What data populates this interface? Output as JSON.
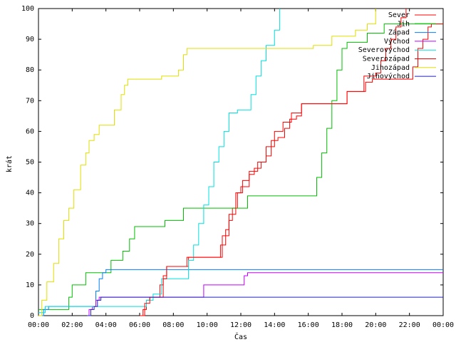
{
  "chart_data": {
    "type": "line",
    "xlabel": "Čas",
    "ylabel": "krát",
    "ylim": [
      0,
      100
    ],
    "xlim": [
      0,
      24
    ],
    "y_ticks": [
      0,
      10,
      20,
      30,
      40,
      50,
      60,
      70,
      80,
      90,
      100
    ],
    "x_ticks": [
      "00:00",
      "02:00",
      "04:00",
      "06:00",
      "08:00",
      "10:00",
      "12:00",
      "14:00",
      "16:00",
      "18:00",
      "20:00",
      "22:00",
      "00:00"
    ],
    "grid": false,
    "legend_position": "top-right",
    "series": [
      {
        "name": "Sever",
        "color": "#ff0000",
        "points": [
          [
            6.1,
            0
          ],
          [
            6.2,
            2
          ],
          [
            6.4,
            5
          ],
          [
            6.6,
            6
          ],
          [
            7,
            6
          ],
          [
            7.2,
            10
          ],
          [
            7.4,
            13
          ],
          [
            7.6,
            16
          ],
          [
            8.8,
            16
          ],
          [
            8.9,
            19
          ],
          [
            10.5,
            19
          ],
          [
            10.8,
            23
          ],
          [
            11.1,
            28
          ],
          [
            11.3,
            31
          ],
          [
            11.5,
            35
          ],
          [
            11.8,
            40
          ],
          [
            12,
            42
          ],
          [
            12.3,
            42
          ],
          [
            12.5,
            46
          ],
          [
            12.8,
            48
          ],
          [
            13.2,
            50
          ],
          [
            13.5,
            52
          ],
          [
            13.8,
            57
          ],
          [
            14.2,
            58
          ],
          [
            14.6,
            61
          ],
          [
            14.9,
            64
          ],
          [
            15.3,
            65
          ],
          [
            15.6,
            69
          ],
          [
            18.1,
            69
          ],
          [
            18.3,
            73
          ],
          [
            19.1,
            73
          ],
          [
            19.3,
            78
          ],
          [
            20,
            79
          ],
          [
            20.3,
            83
          ],
          [
            20.6,
            87
          ],
          [
            20.9,
            90
          ],
          [
            21.2,
            94
          ],
          [
            21.5,
            97
          ],
          [
            21.8,
            100
          ]
        ]
      },
      {
        "name": "Jih",
        "color": "#00c000",
        "points": [
          [
            0,
            2
          ],
          [
            1.5,
            2
          ],
          [
            1.8,
            6
          ],
          [
            2,
            10
          ],
          [
            2.6,
            10
          ],
          [
            2.8,
            14
          ],
          [
            4,
            14
          ],
          [
            4.3,
            18
          ],
          [
            4.8,
            18
          ],
          [
            5,
            21
          ],
          [
            5.4,
            25
          ],
          [
            5.7,
            29
          ],
          [
            7.3,
            29
          ],
          [
            7.5,
            31
          ],
          [
            8.3,
            31
          ],
          [
            8.6,
            35
          ],
          [
            12.1,
            35
          ],
          [
            12.4,
            39
          ],
          [
            16.3,
            39
          ],
          [
            16.5,
            45
          ],
          [
            16.8,
            53
          ],
          [
            17.1,
            61
          ],
          [
            17.4,
            70
          ],
          [
            17.7,
            80
          ],
          [
            18,
            87
          ],
          [
            18.3,
            89
          ],
          [
            19.1,
            89
          ],
          [
            19.5,
            92
          ],
          [
            20.5,
            95
          ],
          [
            24,
            95
          ]
        ]
      },
      {
        "name": "Západ",
        "color": "#0080ff",
        "points": [
          [
            0,
            0
          ],
          [
            0.3,
            2
          ],
          [
            0.6,
            3
          ],
          [
            3.2,
            3
          ],
          [
            3.4,
            8
          ],
          [
            3.6,
            12
          ],
          [
            3.8,
            14
          ],
          [
            4,
            15
          ],
          [
            24,
            15
          ]
        ]
      },
      {
        "name": "Východ",
        "color": "#c000ff",
        "points": [
          [
            2.9,
            0
          ],
          [
            3,
            2
          ],
          [
            3.2,
            3
          ],
          [
            3.4,
            5
          ],
          [
            3.6,
            6
          ],
          [
            9.6,
            6
          ],
          [
            9.8,
            10
          ],
          [
            12,
            10
          ],
          [
            12.2,
            13
          ],
          [
            12.4,
            14
          ],
          [
            24,
            14
          ]
        ]
      },
      {
        "name": "Severovýchod",
        "color": "#00e0e0",
        "points": [
          [
            0,
            1
          ],
          [
            0.4,
            3
          ],
          [
            6.2,
            3
          ],
          [
            6.4,
            5
          ],
          [
            6.8,
            7
          ],
          [
            7.1,
            7
          ],
          [
            7.3,
            12
          ],
          [
            8.7,
            12
          ],
          [
            8.9,
            18
          ],
          [
            9.2,
            23
          ],
          [
            9.5,
            30
          ],
          [
            9.8,
            36
          ],
          [
            10.1,
            42
          ],
          [
            10.4,
            50
          ],
          [
            10.7,
            55
          ],
          [
            11,
            60
          ],
          [
            11.3,
            66
          ],
          [
            11.8,
            67
          ],
          [
            12.3,
            67
          ],
          [
            12.6,
            72
          ],
          [
            12.9,
            78
          ],
          [
            13.2,
            83
          ],
          [
            13.5,
            88
          ],
          [
            13.8,
            88
          ],
          [
            14,
            93
          ],
          [
            14.3,
            100
          ]
        ]
      },
      {
        "name": "Severozápad",
        "color": "#ff0000",
        "points": [
          [
            6,
            0
          ],
          [
            6.3,
            4
          ],
          [
            6.6,
            6
          ],
          [
            7.2,
            6
          ],
          [
            7.4,
            12
          ],
          [
            7.6,
            16
          ],
          [
            8.6,
            16
          ],
          [
            8.8,
            19
          ],
          [
            10.5,
            19
          ],
          [
            10.9,
            26
          ],
          [
            11.3,
            33
          ],
          [
            11.7,
            40
          ],
          [
            12.1,
            44
          ],
          [
            12.5,
            47
          ],
          [
            13,
            50
          ],
          [
            13.5,
            55
          ],
          [
            14,
            60
          ],
          [
            14.5,
            63
          ],
          [
            15,
            66
          ],
          [
            15.6,
            69
          ],
          [
            18.1,
            69
          ],
          [
            18.3,
            73
          ],
          [
            19.1,
            73
          ],
          [
            19.4,
            76
          ],
          [
            19.8,
            77
          ],
          [
            22,
            77
          ],
          [
            22.2,
            81
          ],
          [
            22.5,
            87
          ],
          [
            22.8,
            90
          ],
          [
            23.1,
            94
          ],
          [
            23.3,
            95
          ],
          [
            24,
            95
          ]
        ]
      },
      {
        "name": "Jihozápad",
        "color": "#e0e000",
        "points": [
          [
            0,
            0
          ],
          [
            0.2,
            5
          ],
          [
            0.5,
            11
          ],
          [
            0.9,
            17
          ],
          [
            1.2,
            25
          ],
          [
            1.5,
            31
          ],
          [
            1.8,
            35
          ],
          [
            2.1,
            41
          ],
          [
            2.5,
            49
          ],
          [
            2.8,
            53
          ],
          [
            3,
            57
          ],
          [
            3.3,
            59
          ],
          [
            3.6,
            62
          ],
          [
            4.3,
            62
          ],
          [
            4.5,
            67
          ],
          [
            4.9,
            72
          ],
          [
            5.1,
            75
          ],
          [
            5.3,
            77
          ],
          [
            7.1,
            77
          ],
          [
            7.3,
            78
          ],
          [
            8.1,
            78
          ],
          [
            8.3,
            80
          ],
          [
            8.6,
            85
          ],
          [
            8.8,
            87
          ],
          [
            16.1,
            87
          ],
          [
            16.3,
            88
          ],
          [
            17.2,
            88
          ],
          [
            17.4,
            91
          ],
          [
            18.5,
            91
          ],
          [
            18.8,
            93
          ],
          [
            19.5,
            95
          ],
          [
            20,
            100
          ]
        ]
      },
      {
        "name": "Jihovýchod",
        "color": "#2020c0",
        "points": [
          [
            2.9,
            0
          ],
          [
            3.1,
            2
          ],
          [
            3.3,
            3
          ],
          [
            3.5,
            5
          ],
          [
            3.7,
            6
          ],
          [
            24,
            6
          ]
        ]
      }
    ]
  }
}
